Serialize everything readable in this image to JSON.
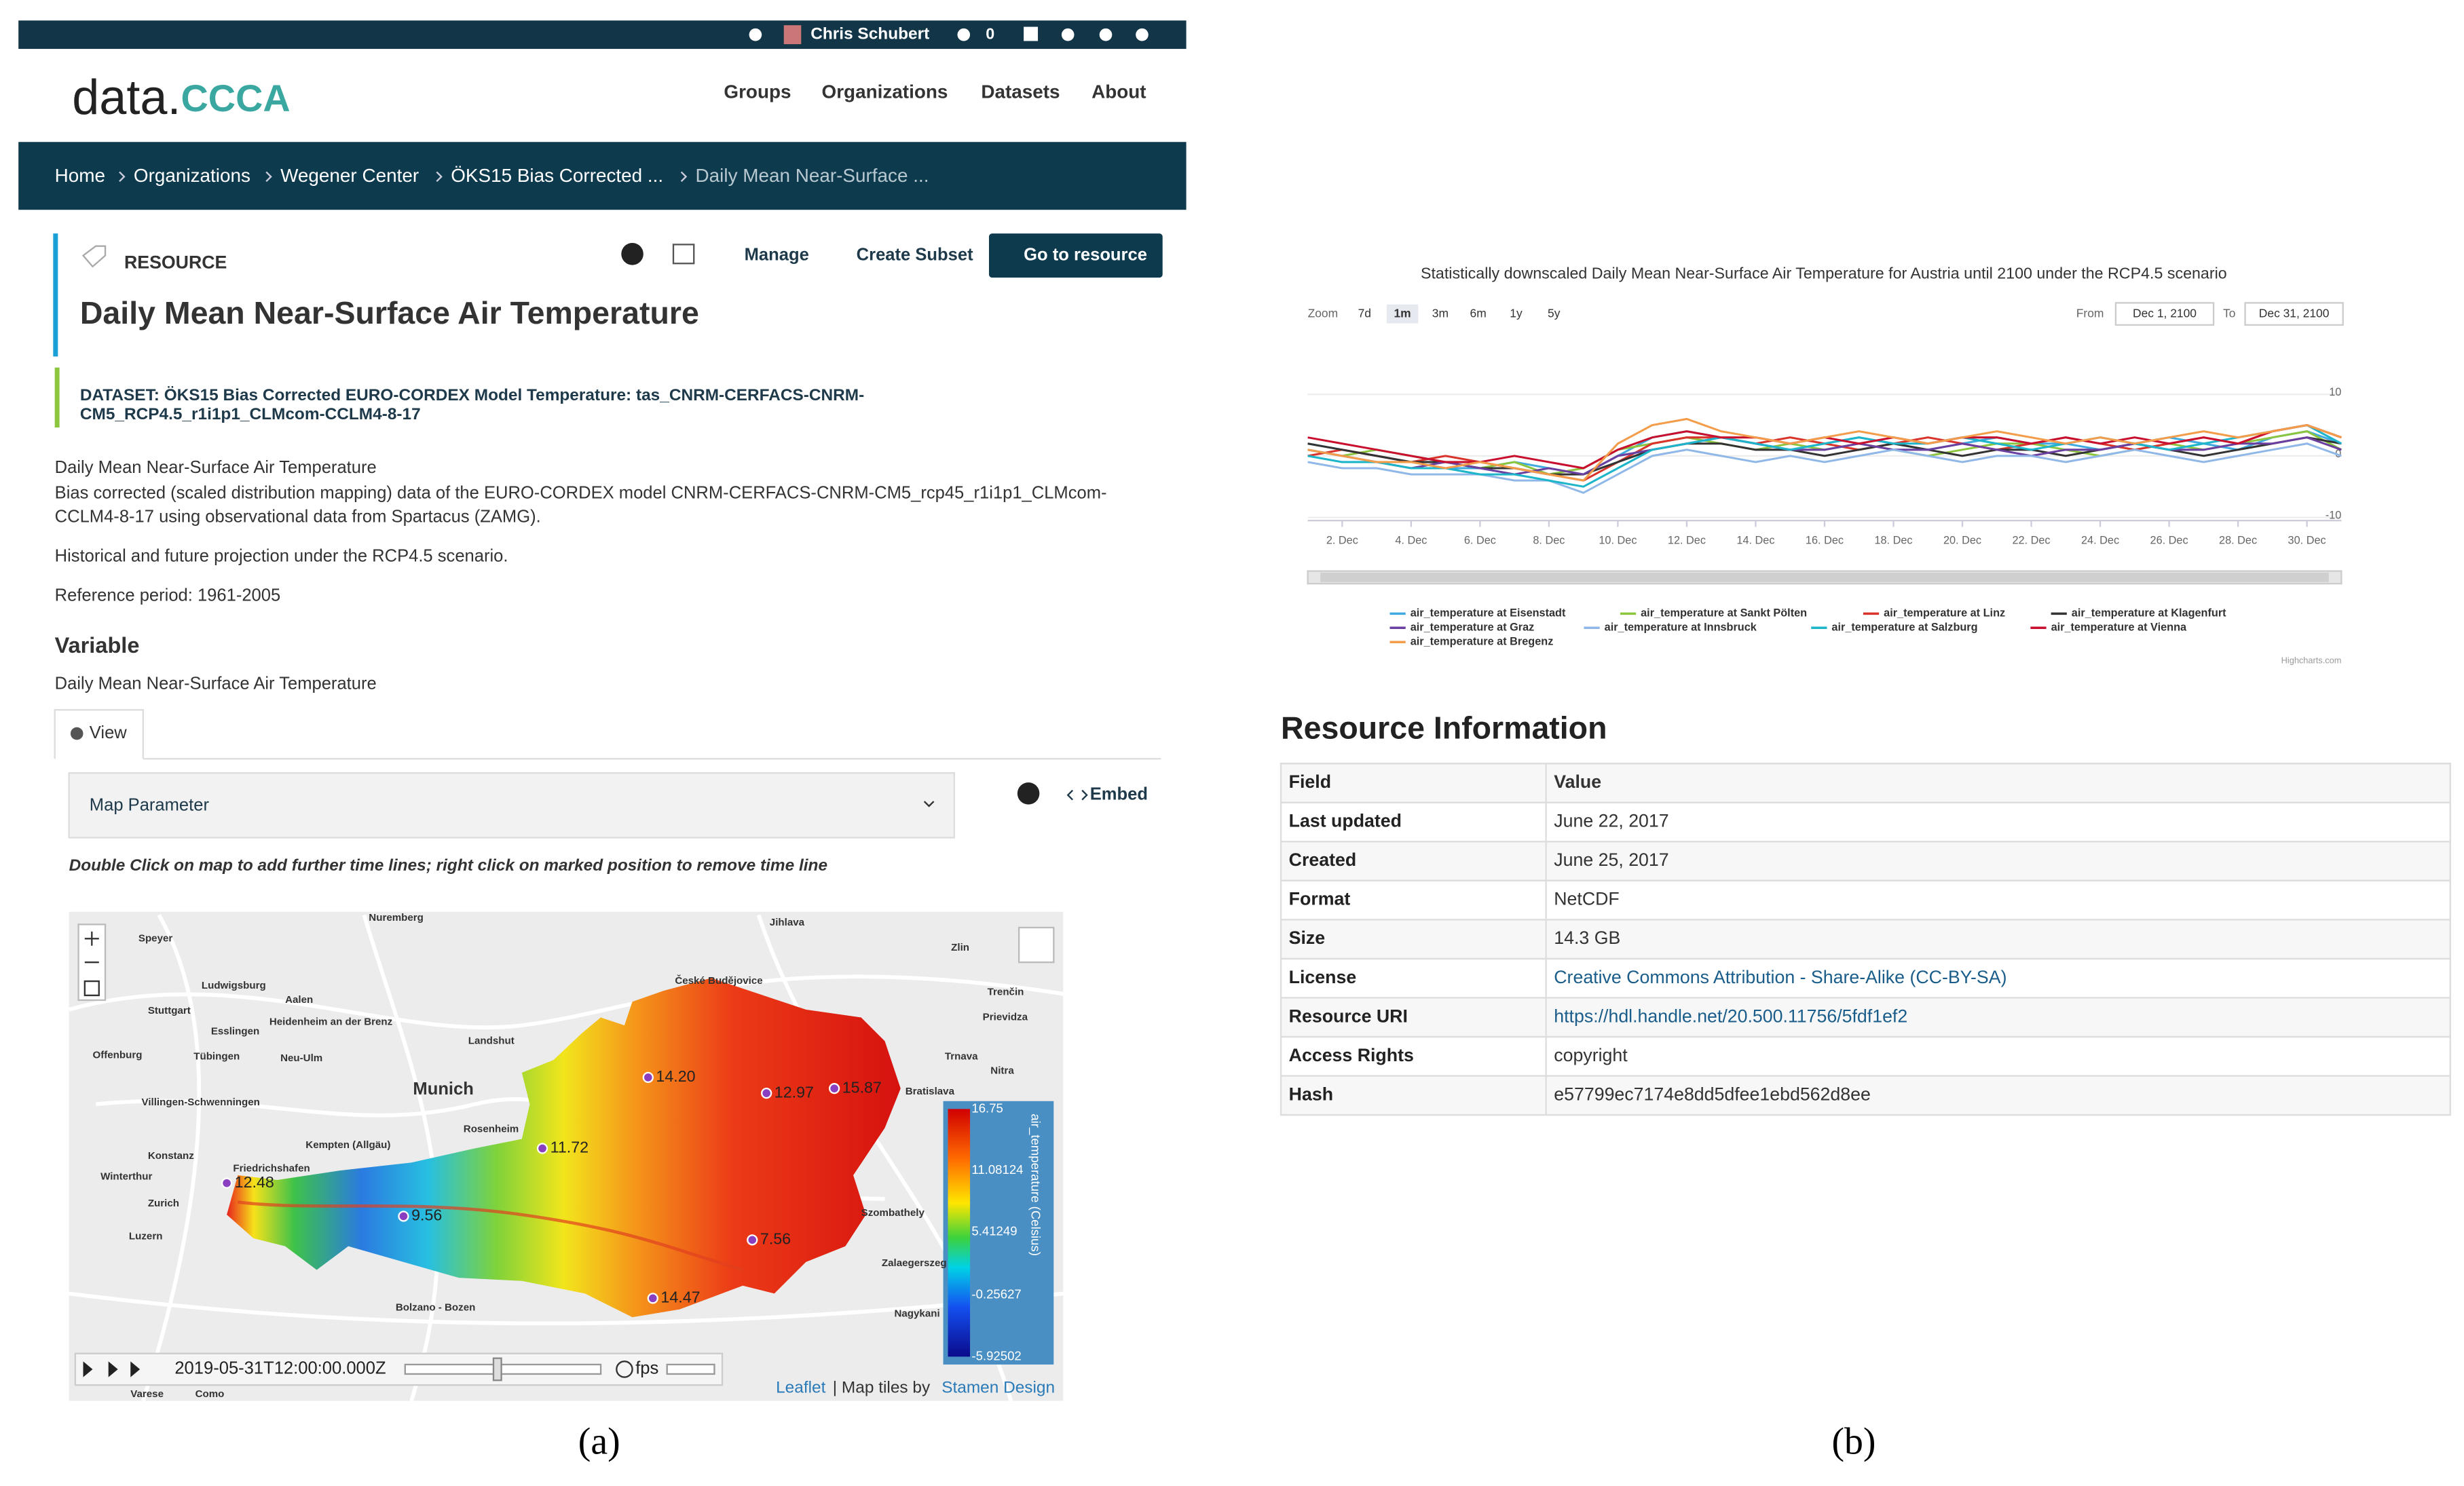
{
  "topbar": {
    "user": "Chris Schubert",
    "count": "0"
  },
  "logo": {
    "text": "data.",
    "mark": "CCCA"
  },
  "nav": [
    "Groups",
    "Organizations",
    "Datasets",
    "About"
  ],
  "breadcrumb": [
    "Home",
    "Organizations",
    "Wegener Center",
    "ÖKS15 Bias Corrected ...",
    "Daily Mean Near-Surface ..."
  ],
  "resource": {
    "label": "RESOURCE",
    "actions": [
      "Manage",
      "Create Subset",
      "Go to resource"
    ],
    "title": "Daily Mean Near-Surface Air Temperature",
    "dataset": [
      "DATASET: ÖKS15 Bias Corrected EURO-CORDEX Model Temperature: tas_CNRM-CERFACS-CNRM-",
      "CM5_RCP4.5_r1i1p1_CLMcom-CCLM4-8-17"
    ],
    "description": [
      "Daily Mean Near-Surface Air Temperature",
      "Bias corrected (scaled distribution mapping) data of the EURO-CORDEX model CNRM-CERFACS-CNRM-CM5_rcp45_r1i1p1_CLMcom-",
      "CCLM4-8-17 using observational data from Spartacus (ZAMG).",
      "Historical and future projection under the RCP4.5 scenario.",
      "Reference period: 1961-2005"
    ],
    "variable_heading": "Variable",
    "variable": "Daily Mean Near-Surface Air Temperature"
  },
  "view_tab": "View",
  "map_parameter": "Map Parameter",
  "embed": "Embed",
  "instruction": "Double Click on map to add further time lines; right click on marked position to remove time line",
  "map": {
    "places": [
      "Nuremberg",
      "Speyer",
      "Jihlava",
      "Zlin",
      "Ludwigsburg",
      "Stuttgart",
      "Aalen",
      "České Budějovice",
      "Trenčin",
      "Heidenheim an der Brenz",
      "Esslingen",
      "Prievidza",
      "Offenburg",
      "Tübingen",
      "Neu-Ulm",
      "Landshut",
      "Trnava",
      "Nitra",
      "Munich",
      "Villingen-Schwenningen",
      "Bratislava",
      "Kempten (Allgäu)",
      "Rosenheim",
      "Konstanz",
      "Friedrichshafen",
      "Winterthur",
      "Zurich",
      "Luzern",
      "Szombathely",
      "Zalaegerszeg",
      "Nagykani",
      "Bolzano - Bozen",
      "Varese",
      "Como"
    ],
    "markers": [
      "14.20",
      "12.97",
      "15.87",
      "11.72",
      "12.48",
      "9.56",
      "7.56",
      "14.47"
    ],
    "colorbar": {
      "title": "air_temperature (Celsius)",
      "labels": [
        "16.75",
        "11.08124",
        "5.41249",
        "-0.25627",
        "-5.92502"
      ]
    },
    "time": "2019-05-31T12:00:00.000Z",
    "fps": "fps",
    "leaflet": "Leaflet",
    "tiles": "| Map tiles by",
    "stamen": "Stamen Design"
  },
  "captions": [
    "(a)",
    "(b)"
  ],
  "chart_data": {
    "type": "line",
    "title": "Statistically downscaled Daily Mean Near-Surface Air Temperature for Austria until 2100 under the RCP4.5 scenario",
    "zoom_label": "Zoom",
    "zoom_buttons": [
      "7d",
      "1m",
      "3m",
      "6m",
      "1y",
      "5y"
    ],
    "from_label": "From",
    "from": "Dec 1, 2100",
    "to_label": "To",
    "to": "Dec 31, 2100",
    "x": [
      1,
      2,
      3,
      4,
      5,
      6,
      7,
      8,
      9,
      10,
      11,
      12,
      13,
      14,
      15,
      16,
      17,
      18,
      19,
      20,
      21,
      22,
      23,
      24,
      25,
      26,
      27,
      28,
      29,
      30,
      31
    ],
    "xlim": [
      1,
      31
    ],
    "xticks": [
      {
        "value": 2,
        "label": "2. Dec"
      },
      {
        "value": 4,
        "label": "4. Dec"
      },
      {
        "value": 6,
        "label": "6. Dec"
      },
      {
        "value": 8,
        "label": "8. Dec"
      },
      {
        "value": 10,
        "label": "10. Dec"
      },
      {
        "value": 12,
        "label": "12. Dec"
      },
      {
        "value": 14,
        "label": "14. Dec"
      },
      {
        "value": 16,
        "label": "16. Dec"
      },
      {
        "value": 18,
        "label": "18. Dec"
      },
      {
        "value": 20,
        "label": "20. Dec"
      },
      {
        "value": 22,
        "label": "22. Dec"
      },
      {
        "value": 24,
        "label": "24. Dec"
      },
      {
        "value": 26,
        "label": "26. Dec"
      },
      {
        "value": 28,
        "label": "28. Dec"
      },
      {
        "value": 30,
        "label": "30. Dec"
      }
    ],
    "ylim": [
      -10,
      10
    ],
    "yticks": [
      -10,
      0,
      10
    ],
    "grid": true,
    "credits": "Highcharts.com",
    "series": [
      {
        "name": "air_temperature at Eisenstadt",
        "color": "#3fa9e0",
        "values": [
          2,
          1,
          0,
          -1,
          -2,
          -2,
          -1,
          -2,
          -3,
          0,
          3,
          4,
          3,
          2,
          1,
          2,
          3,
          2,
          1,
          2,
          3,
          2,
          2,
          1,
          2,
          3,
          2,
          1,
          3,
          4,
          2
        ]
      },
      {
        "name": "air_temperature at Sankt Pölten",
        "color": "#8cc63f",
        "values": [
          1,
          0,
          1,
          0,
          -1,
          -2,
          -1,
          -3,
          -2,
          1,
          2,
          3,
          2,
          1,
          2,
          1,
          2,
          1,
          0,
          1,
          2,
          2,
          1,
          0,
          1,
          2,
          1,
          2,
          3,
          4,
          1
        ]
      },
      {
        "name": "air_temperature at Linz",
        "color": "#d9342b",
        "values": [
          0,
          1,
          0,
          -1,
          0,
          -1,
          -2,
          -3,
          -4,
          -1,
          2,
          3,
          3,
          2,
          3,
          2,
          1,
          2,
          3,
          2,
          1,
          2,
          3,
          2,
          1,
          2,
          3,
          2,
          4,
          5,
          3
        ]
      },
      {
        "name": "air_temperature at Klagenfurt",
        "color": "#333333",
        "values": [
          2,
          1,
          0,
          -1,
          -1,
          -2,
          -2,
          -3,
          -3,
          -1,
          1,
          2,
          2,
          1,
          1,
          0,
          1,
          2,
          1,
          0,
          1,
          1,
          0,
          1,
          2,
          1,
          0,
          1,
          2,
          3,
          2
        ]
      },
      {
        "name": "air_temperature at Graz",
        "color": "#6b3fa0",
        "values": [
          1,
          0,
          -1,
          -2,
          -1,
          -2,
          -3,
          -2,
          -3,
          0,
          1,
          2,
          3,
          2,
          1,
          1,
          2,
          1,
          1,
          2,
          1,
          0,
          1,
          1,
          2,
          1,
          1,
          2,
          2,
          3,
          1
        ]
      },
      {
        "name": "air_temperature at Innsbruck",
        "color": "#8fb8e8",
        "values": [
          -1,
          -2,
          -2,
          -3,
          -3,
          -3,
          -4,
          -4,
          -6,
          -3,
          0,
          1,
          0,
          -1,
          0,
          -1,
          0,
          1,
          0,
          -1,
          0,
          0,
          -1,
          0,
          1,
          0,
          -1,
          0,
          1,
          2,
          0
        ]
      },
      {
        "name": "air_temperature at Salzburg",
        "color": "#1cb5c9",
        "values": [
          0,
          -1,
          -1,
          -2,
          -2,
          -3,
          -3,
          -4,
          -5,
          -2,
          1,
          2,
          3,
          2,
          1,
          2,
          3,
          2,
          2,
          3,
          2,
          1,
          2,
          3,
          2,
          1,
          2,
          3,
          4,
          5,
          2
        ]
      },
      {
        "name": "air_temperature at Vienna",
        "color": "#c8102e",
        "values": [
          3,
          2,
          1,
          0,
          -1,
          -1,
          0,
          -1,
          -2,
          1,
          3,
          4,
          3,
          3,
          2,
          3,
          2,
          3,
          2,
          3,
          3,
          2,
          3,
          2,
          3,
          2,
          3,
          2,
          4,
          5,
          3
        ]
      },
      {
        "name": "air_temperature at Bregenz",
        "color": "#f39c4a",
        "values": [
          1,
          0,
          -1,
          -1,
          -2,
          -1,
          -2,
          -3,
          -4,
          2,
          5,
          6,
          4,
          3,
          2,
          3,
          4,
          3,
          2,
          3,
          4,
          3,
          2,
          3,
          2,
          3,
          4,
          3,
          4,
          5,
          3
        ]
      }
    ]
  },
  "resource_info": {
    "heading": "Resource Information",
    "header": [
      "Field",
      "Value"
    ],
    "rows": [
      [
        "Last updated",
        "June 22, 2017"
      ],
      [
        "Created",
        "June 25, 2017"
      ],
      [
        "Format",
        "NetCDF"
      ],
      [
        "Size",
        "14.3 GB"
      ],
      [
        "License",
        "Creative Commons Attribution - Share-Alike (CC-BY-SA)"
      ],
      [
        "Resource URI",
        "https://hdl.handle.net/20.500.11756/5fdf1ef2"
      ],
      [
        "Access Rights",
        "copyright"
      ],
      [
        "Hash",
        "e57799ec7174e8dd5dfee1ebd562d8ee"
      ]
    ]
  }
}
